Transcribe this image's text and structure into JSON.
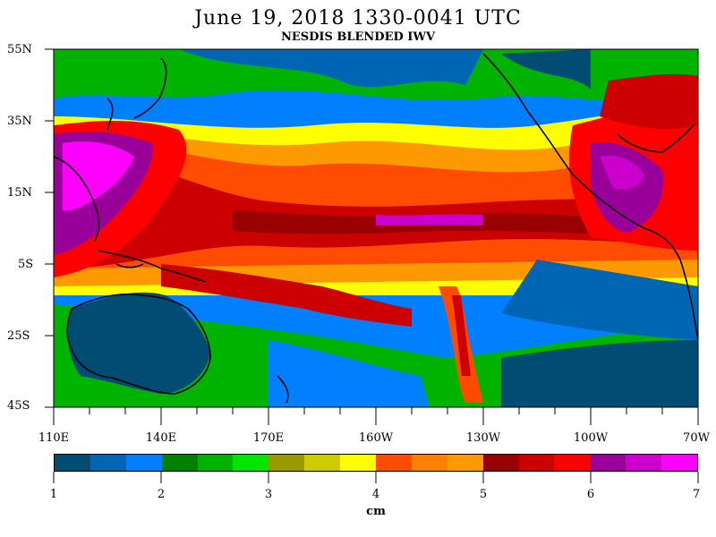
{
  "title": "June 19, 2018  1330-0041 UTC",
  "subtitle": "NESDIS BLENDED IWV",
  "lat_labels": [
    "55N",
    "35N",
    "15N",
    "5S",
    "25S",
    "45S"
  ],
  "lon_labels": [
    "110E",
    "140E",
    "170E",
    "160W",
    "130W",
    "100W",
    "70W"
  ],
  "colorbar": {
    "unit": "cm",
    "tick_labels": [
      "1",
      "2",
      "3",
      "4",
      "5",
      "6",
      "7"
    ],
    "colors": [
      "#004c73",
      "#0066b3",
      "#0080ff",
      "#008000",
      "#00b300",
      "#00e600",
      "#999900",
      "#cccc00",
      "#ffff00",
      "#ff4c00",
      "#ff8000",
      "#ff9900",
      "#990000",
      "#cc0000",
      "#ff0000",
      "#990099",
      "#cc00cc",
      "#ff00ff"
    ]
  },
  "map_colors": {
    "ocean_dry": "#004c73",
    "land_outline": "#000000"
  }
}
